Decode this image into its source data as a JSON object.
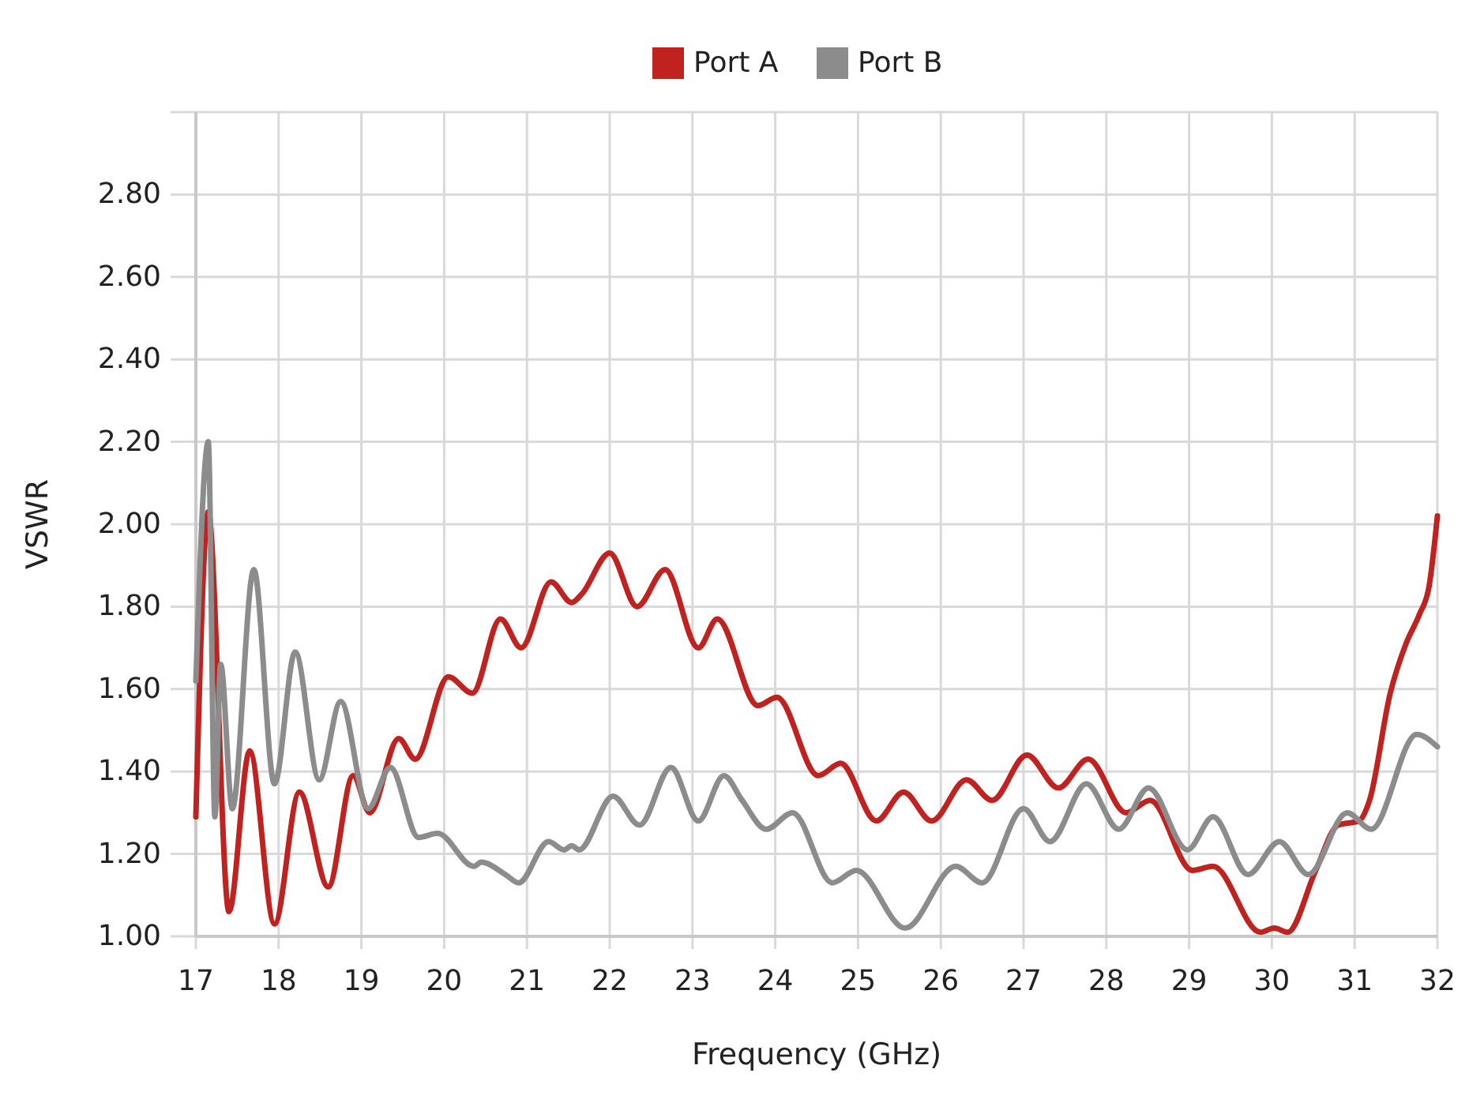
{
  "chart_data": {
    "type": "line",
    "xlabel": "Frequency (GHz)",
    "ylabel": "VSWR",
    "xlim": [
      17,
      32
    ],
    "xticks": [
      17,
      18,
      19,
      20,
      21,
      22,
      23,
      24,
      25,
      26,
      27,
      28,
      29,
      30,
      31,
      32
    ],
    "ylim": [
      1,
      3
    ],
    "yticks": [
      {
        "value": 1,
        "label": "1.00"
      },
      {
        "value": 1.2,
        "label": "1.20"
      },
      {
        "value": 1.4,
        "label": "1.40"
      },
      {
        "value": 1.6,
        "label": "1.60"
      },
      {
        "value": 1.8,
        "label": "1.80"
      },
      {
        "value": 2,
        "label": "2.00"
      },
      {
        "value": 2.2,
        "label": "2.20"
      },
      {
        "value": 2.4,
        "label": "2.40"
      },
      {
        "value": 2.6,
        "label": "2.60"
      },
      {
        "value": 2.8,
        "label": "2.80"
      },
      {
        "value": 3,
        "label": null
      }
    ],
    "grid": true,
    "legend": "top",
    "marker": "none",
    "line_style": "solid",
    "series": [
      {
        "name": "Port A",
        "color": "#c0221f",
        "x": [
          17,
          17.15,
          17.4,
          17.65,
          17.95,
          18.25,
          18.6,
          18.9,
          19.1,
          19.45,
          19.65,
          20.05,
          20.34,
          20.68,
          20.93,
          21.29,
          21.54,
          21.66,
          22,
          22.33,
          22.67,
          23.07,
          23.3,
          23.79,
          24.02,
          24.52,
          24.79,
          25.22,
          25.55,
          25.89,
          26.31,
          26.62,
          27.04,
          27.42,
          27.78,
          28.24,
          28.53,
          29.04,
          29.29,
          29.86,
          30.03,
          30.19,
          30.53,
          30.8,
          31.05,
          31.18,
          31.43,
          31.62,
          31.78,
          31.9,
          32
        ],
        "values": [
          1.29,
          2.03,
          1.06,
          1.45,
          1.03,
          1.35,
          1.12,
          1.39,
          1.3,
          1.48,
          1.43,
          1.63,
          1.59,
          1.77,
          1.7,
          1.86,
          1.81,
          1.83,
          1.93,
          1.8,
          1.89,
          1.7,
          1.77,
          1.56,
          1.58,
          1.39,
          1.42,
          1.28,
          1.35,
          1.28,
          1.38,
          1.33,
          1.44,
          1.36,
          1.43,
          1.3,
          1.33,
          1.16,
          1.17,
          1.01,
          1.02,
          1.01,
          1.16,
          1.27,
          1.28,
          1.33,
          1.59,
          1.71,
          1.78,
          1.85,
          2.02
        ]
      },
      {
        "name": "Port B",
        "color": "#8c8c8c",
        "x": [
          17,
          17.15,
          17.23,
          17.3,
          17.44,
          17.7,
          17.95,
          18.2,
          18.49,
          18.75,
          19.08,
          19.35,
          19.69,
          19.92,
          20.36,
          20.45,
          20.74,
          20.9,
          21.26,
          21.45,
          21.54,
          21.63,
          22.04,
          22.36,
          22.74,
          23.07,
          23.38,
          23.6,
          23.89,
          24.21,
          24.69,
          24.98,
          25.57,
          26.18,
          26.5,
          27,
          27.32,
          27.76,
          28.15,
          28.51,
          28.98,
          29.29,
          29.71,
          30.09,
          30.44,
          30.91,
          31.2,
          31.75,
          32
        ],
        "values": [
          1.62,
          2.2,
          1.29,
          1.66,
          1.31,
          1.89,
          1.37,
          1.69,
          1.38,
          1.57,
          1.31,
          1.41,
          1.24,
          1.25,
          1.17,
          1.18,
          1.15,
          1.13,
          1.23,
          1.21,
          1.22,
          1.21,
          1.34,
          1.27,
          1.41,
          1.28,
          1.39,
          1.33,
          1.26,
          1.3,
          1.13,
          1.16,
          1.02,
          1.17,
          1.13,
          1.31,
          1.23,
          1.37,
          1.26,
          1.36,
          1.21,
          1.29,
          1.15,
          1.23,
          1.15,
          1.3,
          1.26,
          1.49,
          1.46
        ]
      }
    ]
  }
}
